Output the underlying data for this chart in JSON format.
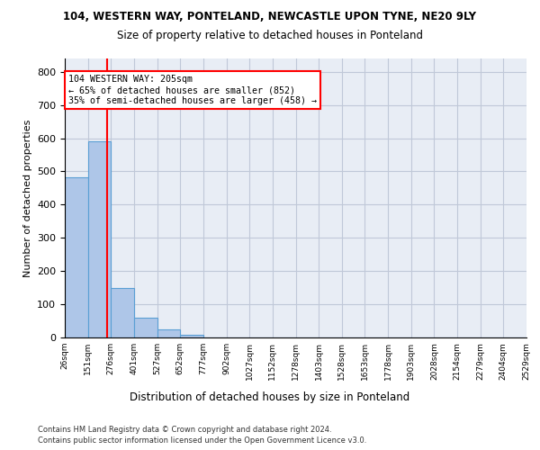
{
  "title": "104, WESTERN WAY, PONTELAND, NEWCASTLE UPON TYNE, NE20 9LY",
  "subtitle": "Size of property relative to detached houses in Ponteland",
  "xlabel": "Distribution of detached houses by size in Ponteland",
  "ylabel": "Number of detached properties",
  "bar_color": "#aec6e8",
  "bar_edge_color": "#5a9fd4",
  "grid_color": "#c0c8d8",
  "bg_color": "#e8edf5",
  "bin_labels": [
    "26sqm",
    "151sqm",
    "276sqm",
    "401sqm",
    "527sqm",
    "652sqm",
    "777sqm",
    "902sqm",
    "1027sqm",
    "1152sqm",
    "1278sqm",
    "1403sqm",
    "1528sqm",
    "1653sqm",
    "1778sqm",
    "1903sqm",
    "2028sqm",
    "2154sqm",
    "2279sqm",
    "2404sqm",
    "2529sqm"
  ],
  "bar_heights": [
    483,
    592,
    148,
    60,
    25,
    8,
    0,
    0,
    0,
    0,
    0,
    0,
    0,
    0,
    0,
    0,
    0,
    0,
    0,
    0
  ],
  "ylim": [
    0,
    840
  ],
  "yticks": [
    0,
    100,
    200,
    300,
    400,
    500,
    600,
    700,
    800
  ],
  "property_label": "104 WESTERN WAY: 205sqm",
  "pct_smaller": 65,
  "n_smaller": 852,
  "pct_larger": 35,
  "n_larger": 458,
  "red_line_x": 1.85,
  "footer1": "Contains HM Land Registry data © Crown copyright and database right 2024.",
  "footer2": "Contains public sector information licensed under the Open Government Licence v3.0."
}
